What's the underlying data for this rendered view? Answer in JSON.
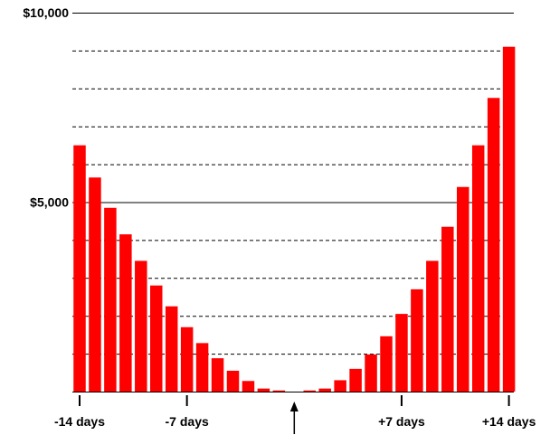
{
  "chart_data": {
    "type": "bar",
    "x_range": [
      -14,
      14
    ],
    "y_range": [
      0,
      10000
    ],
    "bar_color": "#ff0000",
    "grid": {
      "major_lines": [
        5000,
        10000
      ],
      "minor_lines": [
        1000,
        2000,
        3000,
        4000,
        6000,
        7000,
        8000,
        9000
      ]
    },
    "categories": [
      -14,
      -13,
      -12,
      -11,
      -10,
      -9,
      -8,
      -7,
      -6,
      -5,
      -4,
      -3,
      -2,
      -1,
      0,
      1,
      2,
      3,
      4,
      5,
      6,
      7,
      8,
      9,
      10,
      11,
      12,
      13,
      14
    ],
    "values": [
      6500,
      5650,
      4850,
      4150,
      3450,
      2800,
      2250,
      1700,
      1280,
      880,
      550,
      280,
      80,
      30,
      0,
      30,
      80,
      300,
      600,
      980,
      1460,
      2050,
      2700,
      3450,
      4350,
      5400,
      6500,
      7750,
      9100
    ],
    "y_ticks": [
      {
        "value": 10000,
        "label": "$10,000"
      },
      {
        "value": 5000,
        "label": "$5,000"
      }
    ],
    "x_ticks": [
      {
        "value": -14,
        "label": "-14 days"
      },
      {
        "value": -7,
        "label": "-7 days"
      },
      {
        "value": 7,
        "label": "+7 days"
      },
      {
        "value": 14,
        "label": "+14 days"
      }
    ],
    "marker": {
      "value": 0,
      "symbol": "arrow-up"
    }
  }
}
